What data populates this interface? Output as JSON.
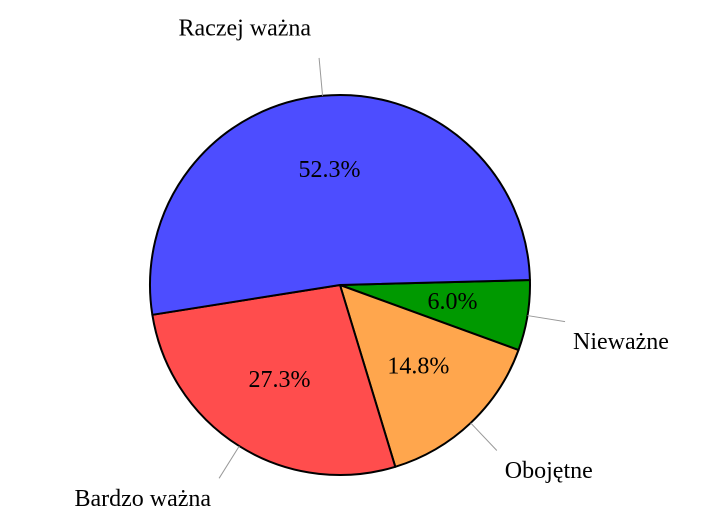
{
  "chart_data": {
    "type": "pie",
    "categories": [
      "Nieważne",
      "Obojętne",
      "Bardzo ważna",
      "Raczej ważna"
    ],
    "values": [
      6.0,
      14.8,
      27.3,
      52.3
    ],
    "value_labels": [
      "6.0%",
      "14.8%",
      "27.3%",
      "52.3%"
    ],
    "colors": [
      "#009900",
      "#ffa64d",
      "#ff4d4d",
      "#4d4dff"
    ]
  }
}
